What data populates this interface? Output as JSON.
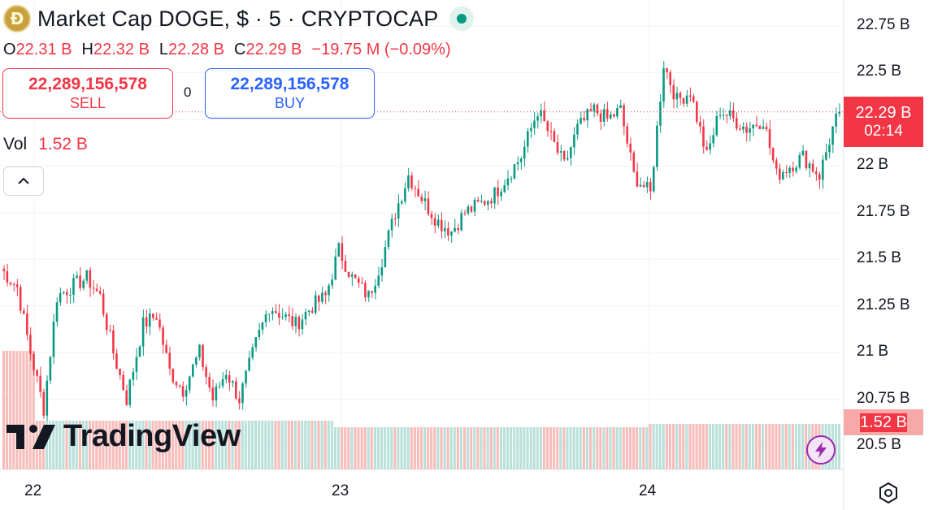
{
  "header": {
    "coin_glyph": "Ð",
    "title": "Market Cap DOGE, $ · 5 · CRYPTOCAP",
    "ohlc": [
      {
        "label": "O",
        "value": "22.31 B"
      },
      {
        "label": "H",
        "value": "22.32 B"
      },
      {
        "label": "L",
        "value": "22.28 B"
      },
      {
        "label": "C",
        "value": "22.29 B"
      }
    ],
    "change": "−19.75 M (−0.09%)"
  },
  "trade": {
    "sell_price": "22,289,156,578",
    "sell_label": "SELL",
    "spread": "0",
    "buy_price": "22,289,156,578",
    "buy_label": "BUY"
  },
  "volume": {
    "label": "Vol",
    "value": "1.52 B"
  },
  "price_axis": {
    "labels": [
      "22.75 B",
      "22.5 B",
      "22 B",
      "21.75 B",
      "21.5 B",
      "21.25 B",
      "21 B",
      "20.75 B",
      "20.5 B"
    ],
    "current_price": "22.29 B",
    "countdown": "02:14",
    "volume_tag": "1.52 B"
  },
  "time_axis": {
    "labels": [
      "22",
      "23",
      "24"
    ]
  },
  "logo": {
    "text": "TradingView"
  },
  "colors": {
    "up": "#089981",
    "down": "#f23645",
    "buy": "#2962ff",
    "accent": "#9c27b0"
  },
  "icons": [
    "doge-coin-icon",
    "live-status-icon",
    "chevron-up-icon",
    "lightning-icon",
    "settings-icon"
  ],
  "chart_data": {
    "type": "candlestick",
    "symbol": "DOGE",
    "interval": "5",
    "ylim": [
      20.4,
      22.85
    ],
    "y_ticks": [
      20.5,
      20.75,
      21,
      21.25,
      21.5,
      21.75,
      22,
      22.25,
      22.5,
      22.75
    ],
    "x_ticks": [
      "22",
      "23",
      "24"
    ],
    "current_price": 22.29,
    "unit": "B",
    "grid": true,
    "close_series": [
      [
        0,
        21.45
      ],
      [
        5,
        21.35
      ],
      [
        9,
        21.0
      ],
      [
        13,
        20.7
      ],
      [
        17,
        21.3
      ],
      [
        21,
        21.35
      ],
      [
        26,
        21.4
      ],
      [
        30,
        21.3
      ],
      [
        34,
        21.0
      ],
      [
        38,
        20.75
      ],
      [
        43,
        21.15
      ],
      [
        47,
        21.2
      ],
      [
        51,
        20.9
      ],
      [
        55,
        20.8
      ],
      [
        60,
        21.0
      ],
      [
        64,
        20.75
      ],
      [
        68,
        20.9
      ],
      [
        72,
        20.75
      ],
      [
        77,
        21.05
      ],
      [
        81,
        21.25
      ],
      [
        85,
        21.2
      ],
      [
        89,
        21.15
      ],
      [
        94,
        21.25
      ],
      [
        98,
        21.3
      ],
      [
        102,
        21.55
      ],
      [
        106,
        21.4
      ],
      [
        111,
        21.3
      ],
      [
        115,
        21.5
      ],
      [
        119,
        21.75
      ],
      [
        123,
        21.95
      ],
      [
        128,
        21.8
      ],
      [
        132,
        21.7
      ],
      [
        136,
        21.65
      ],
      [
        140,
        21.75
      ],
      [
        145,
        21.8
      ],
      [
        149,
        21.85
      ],
      [
        153,
        21.95
      ],
      [
        157,
        22.05
      ],
      [
        162,
        22.3
      ],
      [
        166,
        22.15
      ],
      [
        170,
        22.0
      ],
      [
        174,
        22.2
      ],
      [
        179,
        22.3
      ],
      [
        183,
        22.25
      ],
      [
        187,
        22.3
      ],
      [
        191,
        21.95
      ],
      [
        196,
        21.85
      ],
      [
        200,
        22.55
      ],
      [
        204,
        22.35
      ],
      [
        208,
        22.4
      ],
      [
        213,
        22.05
      ],
      [
        217,
        22.3
      ],
      [
        221,
        22.25
      ],
      [
        225,
        22.2
      ],
      [
        230,
        22.25
      ],
      [
        234,
        21.95
      ],
      [
        238,
        22.0
      ],
      [
        242,
        22.05
      ],
      [
        247,
        21.95
      ],
      [
        251,
        22.2
      ],
      [
        253,
        22.29
      ]
    ],
    "volume_level": 1.52
  }
}
